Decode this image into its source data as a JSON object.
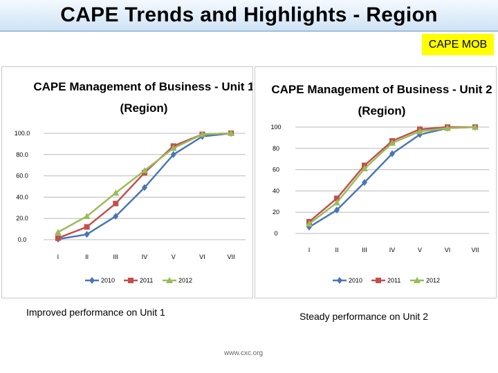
{
  "header": {
    "title": "CAPE Trends and Highlights - Region"
  },
  "tag": {
    "label": "CAPE MOB"
  },
  "colors": {
    "2010": "#4a76b8",
    "2011": "#c1504d",
    "2012": "#9bbb59"
  },
  "chart_data": [
    {
      "type": "line",
      "title_line1": "CAPE Management of Business - Unit 1",
      "title_line2": "(Region)",
      "categories": [
        "I",
        "II",
        "III",
        "IV",
        "V",
        "VI",
        "VII"
      ],
      "ylim": [
        0,
        100
      ],
      "yticks": [
        "0.0",
        "20.0",
        "40.0",
        "60.0",
        "80.0",
        "100.0"
      ],
      "grid": true,
      "legend": "bottom",
      "series": [
        {
          "name": "2010",
          "values": [
            0.5,
            5,
            22,
            49,
            80,
            97,
            100
          ]
        },
        {
          "name": "2011",
          "values": [
            1.5,
            12,
            34,
            63,
            88,
            99,
            100
          ]
        },
        {
          "name": "2012",
          "values": [
            7,
            22,
            44,
            65,
            86,
            99,
            100
          ]
        }
      ]
    },
    {
      "type": "line",
      "title_line1": "CAPE Management of Business - Unit 2",
      "title_line2": "(Region)",
      "categories": [
        "I",
        "II",
        "III",
        "IV",
        "V",
        "VI",
        "VII"
      ],
      "ylim": [
        0,
        100
      ],
      "yticks": [
        "0",
        "20",
        "40",
        "60",
        "80",
        "100"
      ],
      "grid": true,
      "legend": "bottom",
      "series": [
        {
          "name": "2010",
          "values": [
            6,
            22,
            48,
            75,
            93,
            99,
            100
          ]
        },
        {
          "name": "2011",
          "values": [
            11,
            33,
            64,
            87,
            98,
            100,
            100
          ]
        },
        {
          "name": "2012",
          "values": [
            9,
            29,
            61,
            85,
            96,
            99,
            100
          ]
        }
      ]
    }
  ],
  "captions": {
    "unit1": "Improved performance on Unit 1",
    "unit2": "Steady performance on Unit 2"
  },
  "footer": "www.cxc.org"
}
